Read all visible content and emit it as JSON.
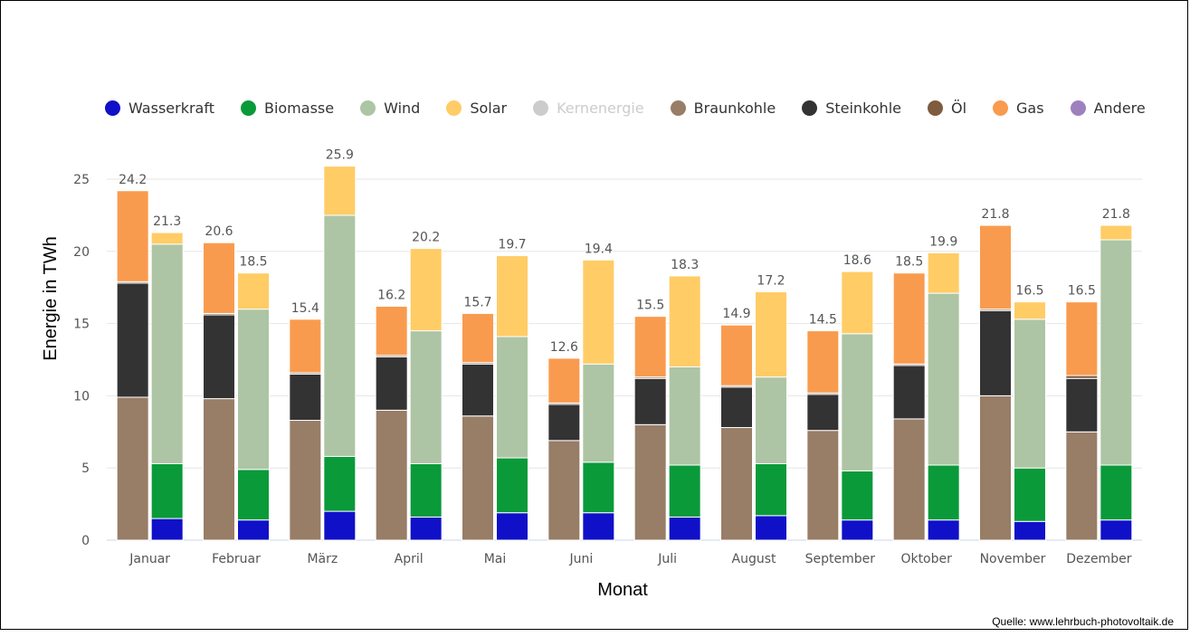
{
  "chart_data": {
    "type": "bar",
    "stacked": true,
    "title": "",
    "xlabel": "Monat",
    "ylabel": "Energie in TWh",
    "ylim": [
      0,
      25
    ],
    "yticks": [
      0,
      5,
      10,
      15,
      20,
      25
    ],
    "grid": true,
    "legend_position": "top",
    "categories": [
      "Januar",
      "Februar",
      "März",
      "April",
      "Mai",
      "Juni",
      "Juli",
      "August",
      "September",
      "Oktober",
      "November",
      "Dezember"
    ],
    "legend": [
      {
        "name": "Wasserkraft",
        "color": "#1010c8",
        "hidden": false
      },
      {
        "name": "Biomasse",
        "color": "#0a9a3a",
        "hidden": false
      },
      {
        "name": "Wind",
        "color": "#adc5a4",
        "hidden": false
      },
      {
        "name": "Solar",
        "color": "#ffcc66",
        "hidden": false
      },
      {
        "name": "Kernenergie",
        "color": "#cccccc",
        "hidden": true
      },
      {
        "name": "Braunkohle",
        "color": "#987d67",
        "hidden": false
      },
      {
        "name": "Steinkohle",
        "color": "#333333",
        "hidden": false
      },
      {
        "name": "Öl",
        "color": "#7d5c3f",
        "hidden": false
      },
      {
        "name": "Gas",
        "color": "#f99b4e",
        "hidden": false
      },
      {
        "name": "Andere",
        "color": "#9f80bf",
        "hidden": false
      }
    ],
    "stacks": [
      {
        "stack": "fossil",
        "series": [
          {
            "name": "Braunkohle",
            "color": "#987d67",
            "values": [
              9.9,
              9.8,
              8.3,
              9.0,
              8.6,
              6.9,
              8.0,
              7.8,
              7.6,
              8.4,
              10.0,
              7.5
            ]
          },
          {
            "name": "Steinkohle",
            "color": "#333333",
            "values": [
              7.9,
              5.8,
              3.2,
              3.7,
              3.6,
              2.5,
              3.2,
              2.8,
              2.5,
              3.7,
              5.9,
              3.7
            ]
          },
          {
            "name": "Öl",
            "color": "#7d5c3f",
            "values": [
              0.1,
              0.1,
              0.1,
              0.1,
              0.1,
              0.1,
              0.1,
              0.1,
              0.1,
              0.1,
              0.1,
              0.2
            ]
          },
          {
            "name": "Gas",
            "color": "#f99b4e",
            "values": [
              6.3,
              4.9,
              3.7,
              3.4,
              3.4,
              3.1,
              4.2,
              4.2,
              4.3,
              6.3,
              5.8,
              5.1
            ]
          }
        ],
        "totals": [
          "24.2",
          "20.6",
          "15.4",
          "16.2",
          "15.7",
          "12.6",
          "15.5",
          "14.9",
          "14.5",
          "18.5",
          "21.8",
          "16.5"
        ]
      },
      {
        "stack": "renewable",
        "series": [
          {
            "name": "Wasserkraft",
            "color": "#1010c8",
            "values": [
              1.5,
              1.4,
              2.0,
              1.6,
              1.9,
              1.9,
              1.6,
              1.7,
              1.4,
              1.4,
              1.3,
              1.4
            ]
          },
          {
            "name": "Biomasse",
            "color": "#0a9a3a",
            "values": [
              3.8,
              3.5,
              3.8,
              3.7,
              3.8,
              3.5,
              3.6,
              3.6,
              3.4,
              3.8,
              3.7,
              3.8
            ]
          },
          {
            "name": "Wind",
            "color": "#adc5a4",
            "values": [
              15.2,
              11.1,
              16.7,
              9.2,
              8.4,
              6.8,
              6.8,
              6.0,
              9.5,
              11.9,
              10.3,
              15.6
            ]
          },
          {
            "name": "Solar",
            "color": "#ffcc66",
            "values": [
              0.8,
              2.5,
              3.4,
              5.7,
              5.6,
              7.2,
              6.3,
              5.9,
              4.3,
              2.8,
              1.2,
              1.0
            ]
          }
        ],
        "totals": [
          "21.3",
          "18.5",
          "25.9",
          "20.2",
          "19.7",
          "19.4",
          "18.3",
          "17.2",
          "18.6",
          "19.9",
          "16.5",
          "21.8"
        ]
      }
    ]
  },
  "source": "Quelle: www.lehrbuch-photovoltaik.de"
}
